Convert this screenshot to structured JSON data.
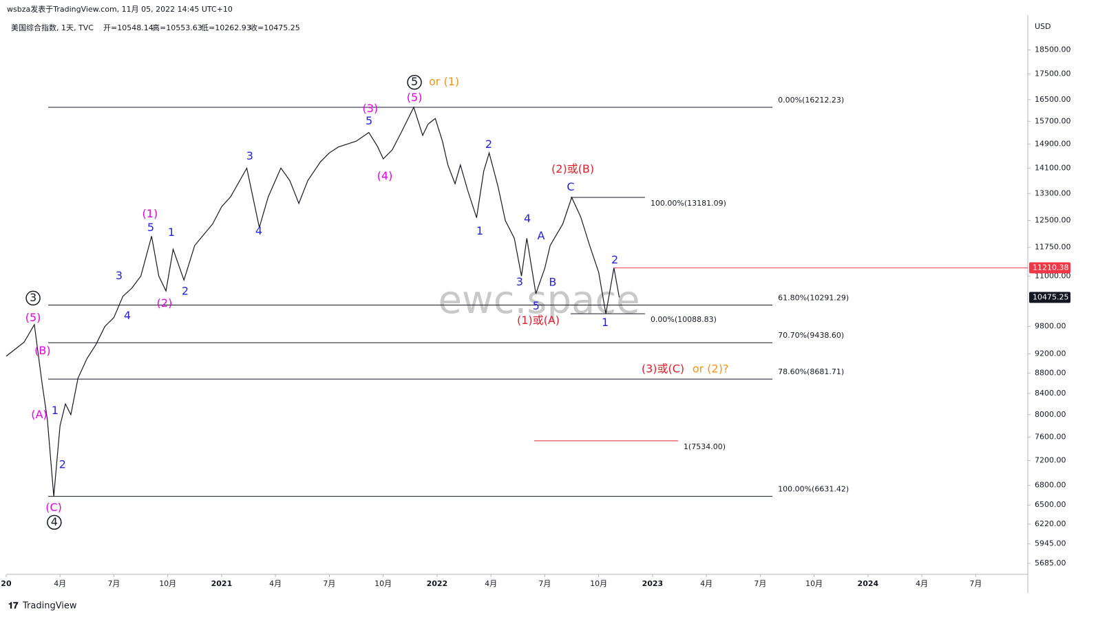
{
  "header": {
    "author_line": "wsbza发表于TradingView.com, 11月 05, 2022 14:45 UTC+10",
    "symbol": "美国综合指数, 1天, TVC",
    "open": "开=10548.14",
    "high": "高=10553.63",
    "low": "低=10262.93",
    "close": "收=10475.25",
    "currency": "USD",
    "watermark": "ewc.space",
    "footer": "TradingView"
  },
  "chart_data": {
    "type": "line",
    "log_scale": true,
    "grid": false,
    "y_axis_side": "right",
    "xlim": [
      0.04,
      56.9
    ],
    "ylim": [
      5543,
      19785
    ],
    "xticks": [
      {
        "value": 0,
        "label": "20"
      },
      {
        "value": 3,
        "label": "4月"
      },
      {
        "value": 6,
        "label": "7月"
      },
      {
        "value": 9,
        "label": "10月"
      },
      {
        "value": 12,
        "label": "2021"
      },
      {
        "value": 15,
        "label": "4月"
      },
      {
        "value": 18,
        "label": "7月"
      },
      {
        "value": 21,
        "label": "10月"
      },
      {
        "value": 24,
        "label": "2022"
      },
      {
        "value": 27,
        "label": "4月"
      },
      {
        "value": 30,
        "label": "7月"
      },
      {
        "value": 33,
        "label": "10月"
      },
      {
        "value": 36,
        "label": "2023"
      },
      {
        "value": 39,
        "label": "4月"
      },
      {
        "value": 42,
        "label": "7月"
      },
      {
        "value": 45,
        "label": "10月"
      },
      {
        "value": 48,
        "label": "2024"
      },
      {
        "value": 51,
        "label": "4月"
      },
      {
        "value": 54,
        "label": "7月"
      }
    ],
    "yticks": [
      {
        "value": 18500,
        "label": "18500.00"
      },
      {
        "value": 17500,
        "label": "17500.00"
      },
      {
        "value": 16500,
        "label": "16500.00"
      },
      {
        "value": 15700,
        "label": "15700.00"
      },
      {
        "value": 14900,
        "label": "14900.00"
      },
      {
        "value": 14100,
        "label": "14100.00"
      },
      {
        "value": 13300,
        "label": "13300.00"
      },
      {
        "value": 12500,
        "label": "12500.00"
      },
      {
        "value": 11750,
        "label": "11750.00"
      },
      {
        "value": 11000,
        "label": "11000.00"
      },
      {
        "value": 9800,
        "label": "9800.00"
      },
      {
        "value": 9200,
        "label": "9200.00"
      },
      {
        "value": 8800,
        "label": "8800.00"
      },
      {
        "value": 8400,
        "label": "8400.00"
      },
      {
        "value": 8000,
        "label": "8000.00"
      },
      {
        "value": 7600,
        "label": "7600.00"
      },
      {
        "value": 7200,
        "label": "7200.00"
      },
      {
        "value": 6800,
        "label": "6800.00"
      },
      {
        "value": 6500,
        "label": "6500.00"
      },
      {
        "value": 6220,
        "label": "6220.00"
      },
      {
        "value": 5945,
        "label": "5945.00"
      },
      {
        "value": 5685,
        "label": "5685.00"
      }
    ],
    "series": [
      {
        "color": "#131722",
        "x": [
          0,
          0.5,
          1.0,
          1.57,
          2.0,
          2.3,
          2.65,
          3.0,
          3.3,
          3.6,
          4.0,
          4.5,
          5.0,
          5.5,
          6.0,
          6.5,
          7.0,
          7.5,
          8.1,
          8.5,
          8.9,
          9.3,
          9.9,
          10.5,
          11.0,
          11.5,
          12.0,
          12.5,
          13.4,
          14.1,
          14.6,
          15.3,
          15.8,
          16.3,
          16.8,
          17.5,
          18.0,
          18.5,
          19.5,
          20.2,
          20.7,
          21.0,
          21.5,
          22.0,
          22.7,
          23.2,
          23.5,
          23.9,
          24.3,
          24.6,
          25.0,
          25.3,
          25.7,
          26.2,
          26.6,
          26.9,
          27.4,
          27.8,
          28.3,
          28.7,
          29.0,
          29.5,
          30.0,
          30.3,
          31.0,
          31.5,
          32.0,
          32.5,
          33.0,
          33.4,
          33.85,
          34.15
        ],
        "values": [
          9150,
          9300,
          9450,
          9838,
          8600,
          7900,
          6631,
          7800,
          8200,
          8000,
          8700,
          9100,
          9400,
          9800,
          10000,
          10500,
          10700,
          11000,
          12056,
          11000,
          10630,
          11700,
          10900,
          11800,
          12100,
          12400,
          12900,
          13200,
          14095,
          12300,
          13200,
          14100,
          13700,
          13000,
          13700,
          14300,
          14600,
          14800,
          15000,
          15300,
          14800,
          14400,
          14700,
          15300,
          16212,
          15200,
          15600,
          15800,
          15000,
          14200,
          13600,
          14200,
          13400,
          12580,
          14000,
          14600,
          13500,
          12500,
          12000,
          11000,
          12000,
          10565,
          11200,
          11800,
          12400,
          13181,
          12600,
          11800,
          11100,
          10088,
          11210,
          10475
        ]
      }
    ],
    "fib_levels": [
      {
        "value": 16212.23,
        "label": "0.00%(16212.23)",
        "x": [
          2.34,
          42.68
        ],
        "color": "#131722"
      },
      {
        "value": 13181.09,
        "label": "100.00%(13181.09)",
        "x": [
          31.44,
          35.58
        ],
        "color": "#131722"
      },
      {
        "value": 10291.29,
        "label": "61.80%(10291.29)",
        "x": [
          2.34,
          42.68
        ],
        "color": "#131722"
      },
      {
        "value": 10088.83,
        "label": "0.00%(10088.83)",
        "x": [
          31.44,
          35.58
        ],
        "color": "#131722"
      },
      {
        "value": 9438.6,
        "label": "70.70%(9438.60)",
        "x": [
          2.34,
          42.68
        ],
        "color": "#131722"
      },
      {
        "value": 8681.71,
        "label": "78.60%(8681.71)",
        "x": [
          2.34,
          42.68
        ],
        "color": "#131722"
      },
      {
        "value": 7534.0,
        "label": "1(7534.00)",
        "x": [
          29.41,
          37.42
        ],
        "color": "#e0202a"
      },
      {
        "value": 6631.42,
        "label": "100.00%(6631.42)",
        "x": [
          2.34,
          42.68
        ],
        "color": "#131722"
      }
    ],
    "price_tags": [
      {
        "value": 11210.38,
        "label": "11210.38",
        "color": "#f23645",
        "line_from": 33.85
      },
      {
        "value": 10475.25,
        "label": "10475.25",
        "color": "#131722"
      }
    ],
    "annotations": [
      {
        "text": "1",
        "x": 2.72,
        "y": 8071,
        "color": "#1f1fe6"
      },
      {
        "text": "2",
        "x": 3.14,
        "y": 7124,
        "color": "#1f1fe6"
      },
      {
        "text": "3",
        "x": 6.29,
        "y": 11000,
        "color": "#1f1fe6"
      },
      {
        "text": "4",
        "x": 6.75,
        "y": 10037,
        "color": "#1f1fe6"
      },
      {
        "text": "5",
        "x": 8.05,
        "y": 12286,
        "color": "#1f1fe6"
      },
      {
        "text": "1",
        "x": 9.2,
        "y": 12151,
        "color": "#1f1fe6"
      },
      {
        "text": "2",
        "x": 9.97,
        "y": 10610,
        "color": "#1f1fe6"
      },
      {
        "text": "3",
        "x": 13.57,
        "y": 14478,
        "color": "#1f1fe6"
      },
      {
        "text": "4",
        "x": 14.07,
        "y": 12190,
        "color": "#1f1fe6"
      },
      {
        "text": "5",
        "x": 20.21,
        "y": 15693,
        "color": "#1f1fe6"
      },
      {
        "text": "2",
        "x": 26.88,
        "y": 14872,
        "color": "#1f1fe6"
      },
      {
        "text": "1",
        "x": 26.38,
        "y": 12190,
        "color": "#1f1fe6"
      },
      {
        "text": "4",
        "x": 29.03,
        "y": 12541,
        "color": "#1f1fe6"
      },
      {
        "text": "A",
        "x": 29.79,
        "y": 12055,
        "color": "#1f1fe6"
      },
      {
        "text": "3",
        "x": 28.6,
        "y": 10847,
        "color": "#1f1fe6"
      },
      {
        "text": "B",
        "x": 30.44,
        "y": 10830,
        "color": "#1f1fe6"
      },
      {
        "text": "5",
        "x": 29.52,
        "y": 10262,
        "color": "#1f1fe6"
      },
      {
        "text": "C",
        "x": 31.44,
        "y": 13485,
        "color": "#1f1fe6"
      },
      {
        "text": "2",
        "x": 33.9,
        "y": 11406,
        "color": "#1f1fe6"
      },
      {
        "text": "1",
        "x": 33.36,
        "y": 9880,
        "color": "#1f1fe6"
      },
      {
        "text": "(5)",
        "x": 1.5,
        "y": 9989,
        "color": "#e600e6"
      },
      {
        "text": "(B)",
        "x": 2.03,
        "y": 9260,
        "color": "#e600e6"
      },
      {
        "text": "(A)",
        "x": 1.84,
        "y": 7995,
        "color": "#e600e6"
      },
      {
        "text": "(C)",
        "x": 2.65,
        "y": 6458,
        "color": "#e600e6"
      },
      {
        "text": "(1)",
        "x": 8.01,
        "y": 12681,
        "color": "#e600e6"
      },
      {
        "text": "(2)",
        "x": 8.82,
        "y": 10326,
        "color": "#e600e6"
      },
      {
        "text": "(3)",
        "x": 20.28,
        "y": 16145,
        "color": "#e600e6"
      },
      {
        "text": "(4)",
        "x": 21.09,
        "y": 13829,
        "color": "#e600e6"
      },
      {
        "text": "(5)",
        "x": 22.74,
        "y": 16559,
        "color": "#e600e6"
      },
      {
        "text": "(2)或(B)",
        "x": 31.56,
        "y": 14050,
        "color": "#e0202a"
      },
      {
        "text": "(1)或(A)",
        "x": 29.64,
        "y": 9926,
        "color": "#e0202a"
      },
      {
        "text": "(3)或(C)",
        "x": 36.58,
        "y": 8875,
        "color": "#e0202a"
      },
      {
        "text": "or (1)",
        "x": 24.39,
        "y": 17171,
        "color": "#f7931a"
      },
      {
        "text": "or (2)?",
        "x": 39.23,
        "y": 8875,
        "color": "#f7931a"
      },
      {
        "text": "5",
        "x": 22.74,
        "y": 17171,
        "color": "#131722",
        "circle": true
      },
      {
        "text": "3",
        "x": 1.5,
        "y": 10457,
        "color": "#131722",
        "circle": true
      },
      {
        "text": "4",
        "x": 2.68,
        "y": 6247,
        "color": "#131722",
        "circle": true
      }
    ]
  }
}
